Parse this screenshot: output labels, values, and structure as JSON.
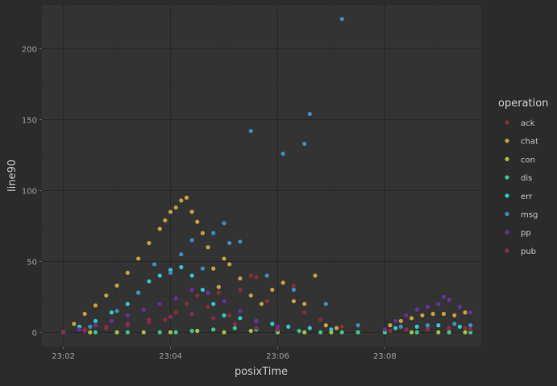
{
  "chart_data": {
    "type": "scatter",
    "title": "",
    "xlabel": "posixTime",
    "ylabel": "line90",
    "x_unit": "clock time (HH:MM)",
    "xlim": [
      "23:01:36",
      "23:09:48"
    ],
    "ylim": [
      -10,
      231
    ],
    "x_ticks": [
      "23:02",
      "23:04",
      "23:06",
      "23:08"
    ],
    "y_ticks": [
      0,
      50,
      100,
      150,
      200
    ],
    "grid": true,
    "legend_position": "right",
    "legend_title": "operation",
    "series": [
      {
        "name": "ack",
        "color": "#8b2f2f",
        "points": [
          [
            "23:02:00",
            0
          ],
          [
            "23:02:24",
            2
          ],
          [
            "23:02:48",
            4
          ],
          [
            "23:03:12",
            5
          ],
          [
            "23:03:36",
            7
          ],
          [
            "23:03:54",
            9
          ],
          [
            "23:04:06",
            14
          ],
          [
            "23:04:18",
            20
          ],
          [
            "23:04:30",
            26
          ],
          [
            "23:04:42",
            18
          ],
          [
            "23:04:54",
            28
          ],
          [
            "23:05:06",
            12
          ],
          [
            "23:05:18",
            30
          ],
          [
            "23:05:30",
            40
          ],
          [
            "23:05:36",
            39
          ],
          [
            "23:05:48",
            22
          ],
          [
            "23:06:06",
            35
          ],
          [
            "23:06:18",
            33
          ],
          [
            "23:06:30",
            14
          ],
          [
            "23:06:48",
            9
          ],
          [
            "23:07:12",
            4
          ],
          [
            "23:08:06",
            1
          ],
          [
            "23:08:24",
            2
          ],
          [
            "23:08:48",
            3
          ],
          [
            "23:09:12",
            2
          ],
          [
            "23:09:30",
            3
          ]
        ]
      },
      {
        "name": "chat",
        "color": "#c8a040",
        "points": [
          [
            "23:02:00",
            0
          ],
          [
            "23:02:12",
            6
          ],
          [
            "23:02:24",
            13
          ],
          [
            "23:02:36",
            19
          ],
          [
            "23:02:48",
            26
          ],
          [
            "23:03:00",
            33
          ],
          [
            "23:03:12",
            42
          ],
          [
            "23:03:24",
            52
          ],
          [
            "23:03:36",
            63
          ],
          [
            "23:03:48",
            73
          ],
          [
            "23:03:54",
            79
          ],
          [
            "23:04:00",
            85
          ],
          [
            "23:04:06",
            88
          ],
          [
            "23:04:12",
            93
          ],
          [
            "23:04:18",
            95
          ],
          [
            "23:04:24",
            85
          ],
          [
            "23:04:30",
            78
          ],
          [
            "23:04:36",
            70
          ],
          [
            "23:04:42",
            60
          ],
          [
            "23:04:48",
            45
          ],
          [
            "23:04:54",
            32
          ],
          [
            "23:05:00",
            52
          ],
          [
            "23:05:06",
            48
          ],
          [
            "23:05:18",
            38
          ],
          [
            "23:05:30",
            26
          ],
          [
            "23:05:42",
            20
          ],
          [
            "23:05:54",
            30
          ],
          [
            "23:06:06",
            35
          ],
          [
            "23:06:18",
            22
          ],
          [
            "23:06:30",
            20
          ],
          [
            "23:06:42",
            40
          ],
          [
            "23:06:54",
            5
          ],
          [
            "23:07:06",
            3
          ],
          [
            "23:08:06",
            5
          ],
          [
            "23:08:18",
            8
          ],
          [
            "23:08:30",
            10
          ],
          [
            "23:08:42",
            12
          ],
          [
            "23:08:54",
            13
          ],
          [
            "23:09:06",
            13
          ],
          [
            "23:09:18",
            12
          ],
          [
            "23:09:30",
            14
          ]
        ]
      },
      {
        "name": "con",
        "color": "#a6c040",
        "points": [
          [
            "23:02:00",
            0
          ],
          [
            "23:02:30",
            0
          ],
          [
            "23:03:00",
            0
          ],
          [
            "23:03:30",
            0
          ],
          [
            "23:04:00",
            0
          ],
          [
            "23:04:30",
            1
          ],
          [
            "23:05:00",
            0
          ],
          [
            "23:05:30",
            1
          ],
          [
            "23:06:00",
            0
          ],
          [
            "23:06:30",
            0
          ],
          [
            "23:07:00",
            0
          ],
          [
            "23:07:30",
            0
          ],
          [
            "23:08:00",
            0
          ],
          [
            "23:08:30",
            0
          ],
          [
            "23:09:00",
            0
          ],
          [
            "23:09:30",
            0
          ]
        ]
      },
      {
        "name": "dis",
        "color": "#3fc487",
        "points": [
          [
            "23:02:00",
            0
          ],
          [
            "23:02:36",
            0
          ],
          [
            "23:03:12",
            0
          ],
          [
            "23:03:48",
            0
          ],
          [
            "23:04:06",
            0
          ],
          [
            "23:04:24",
            1
          ],
          [
            "23:04:48",
            2
          ],
          [
            "23:05:12",
            3
          ],
          [
            "23:05:36",
            2
          ],
          [
            "23:06:00",
            1
          ],
          [
            "23:06:24",
            1
          ],
          [
            "23:06:48",
            0
          ],
          [
            "23:07:12",
            0
          ],
          [
            "23:07:30",
            0
          ],
          [
            "23:08:00",
            0
          ],
          [
            "23:08:36",
            0
          ],
          [
            "23:09:12",
            0
          ],
          [
            "23:09:36",
            0
          ]
        ]
      },
      {
        "name": "err",
        "color": "#36c3cf",
        "points": [
          [
            "23:02:00",
            0
          ],
          [
            "23:02:18",
            4
          ],
          [
            "23:02:36",
            8
          ],
          [
            "23:02:54",
            14
          ],
          [
            "23:03:12",
            20
          ],
          [
            "23:03:24",
            28
          ],
          [
            "23:03:36",
            36
          ],
          [
            "23:03:48",
            40
          ],
          [
            "23:04:00",
            44
          ],
          [
            "23:04:12",
            46
          ],
          [
            "23:04:24",
            40
          ],
          [
            "23:04:36",
            30
          ],
          [
            "23:04:48",
            20
          ],
          [
            "23:05:00",
            12
          ],
          [
            "23:05:18",
            10
          ],
          [
            "23:05:36",
            8
          ],
          [
            "23:05:54",
            6
          ],
          [
            "23:06:12",
            4
          ],
          [
            "23:06:36",
            3
          ],
          [
            "23:07:00",
            2
          ],
          [
            "23:08:12",
            3
          ],
          [
            "23:08:36",
            4
          ],
          [
            "23:09:00",
            5
          ],
          [
            "23:09:24",
            4
          ]
        ]
      },
      {
        "name": "msg",
        "color": "#3a8fc0",
        "points": [
          [
            "23:02:00",
            0
          ],
          [
            "23:02:30",
            4
          ],
          [
            "23:03:00",
            15
          ],
          [
            "23:03:24",
            28
          ],
          [
            "23:03:42",
            48
          ],
          [
            "23:04:00",
            42
          ],
          [
            "23:04:12",
            55
          ],
          [
            "23:04:24",
            65
          ],
          [
            "23:04:36",
            45
          ],
          [
            "23:04:48",
            70
          ],
          [
            "23:05:00",
            77
          ],
          [
            "23:05:06",
            63
          ],
          [
            "23:05:18",
            64
          ],
          [
            "23:05:30",
            142
          ],
          [
            "23:05:48",
            40
          ],
          [
            "23:06:06",
            126
          ],
          [
            "23:06:18",
            30
          ],
          [
            "23:06:30",
            133
          ],
          [
            "23:06:36",
            154
          ],
          [
            "23:06:54",
            20
          ],
          [
            "23:07:12",
            221
          ],
          [
            "23:07:30",
            5
          ],
          [
            "23:08:18",
            4
          ],
          [
            "23:08:48",
            5
          ],
          [
            "23:09:18",
            6
          ],
          [
            "23:09:36",
            5
          ]
        ]
      },
      {
        "name": "pp",
        "color": "#6a2fa0",
        "points": [
          [
            "23:02:00",
            0
          ],
          [
            "23:02:18",
            2
          ],
          [
            "23:02:36",
            5
          ],
          [
            "23:02:54",
            8
          ],
          [
            "23:03:12",
            12
          ],
          [
            "23:03:30",
            16
          ],
          [
            "23:03:48",
            20
          ],
          [
            "23:04:06",
            24
          ],
          [
            "23:04:24",
            30
          ],
          [
            "23:04:42",
            28
          ],
          [
            "23:05:00",
            22
          ],
          [
            "23:05:18",
            15
          ],
          [
            "23:05:36",
            8
          ],
          [
            "23:06:00",
            4
          ],
          [
            "23:08:00",
            2
          ],
          [
            "23:08:12",
            8
          ],
          [
            "23:08:24",
            12
          ],
          [
            "23:08:36",
            16
          ],
          [
            "23:08:48",
            18
          ],
          [
            "23:09:00",
            20
          ],
          [
            "23:09:06",
            25
          ],
          [
            "23:09:12",
            23
          ],
          [
            "23:09:24",
            18
          ],
          [
            "23:09:36",
            14
          ]
        ]
      },
      {
        "name": "pub",
        "color": "#8a2a5a",
        "points": [
          [
            "23:02:00",
            0
          ],
          [
            "23:02:24",
            1
          ],
          [
            "23:02:48",
            3
          ],
          [
            "23:03:12",
            6
          ],
          [
            "23:03:36",
            9
          ],
          [
            "23:04:00",
            11
          ],
          [
            "23:04:24",
            13
          ],
          [
            "23:04:48",
            10
          ],
          [
            "23:05:12",
            6
          ],
          [
            "23:05:36",
            3
          ],
          [
            "23:06:00",
            2
          ],
          [
            "23:08:24",
            2
          ],
          [
            "23:08:48",
            2
          ],
          [
            "23:09:12",
            3
          ],
          [
            "23:09:36",
            2
          ]
        ]
      }
    ]
  }
}
